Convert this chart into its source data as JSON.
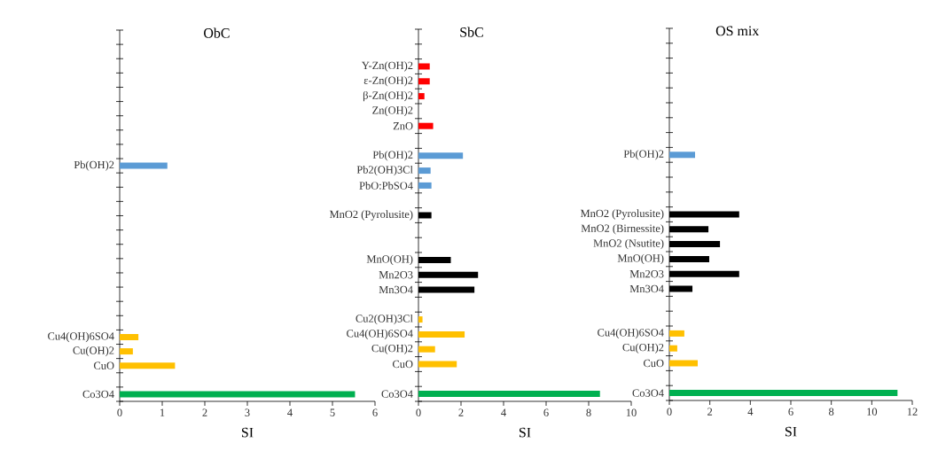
{
  "chart_data": [
    {
      "type": "bar",
      "orientation": "horizontal",
      "title": "ObC",
      "xlabel": "SI",
      "xlim": [
        0,
        6
      ],
      "xticks": [
        0,
        1,
        2,
        3,
        4,
        5,
        6
      ],
      "categories": [
        null,
        null,
        null,
        null,
        null,
        null,
        null,
        null,
        null,
        "Pb(OH)2",
        null,
        null,
        null,
        null,
        null,
        null,
        null,
        null,
        null,
        null,
        null,
        "Cu4(OH)6SO4",
        "Cu(OH)2",
        "CuO",
        null,
        "Co3O4"
      ],
      "values": [
        null,
        null,
        null,
        null,
        null,
        null,
        null,
        null,
        null,
        1.12,
        null,
        null,
        null,
        null,
        null,
        null,
        null,
        null,
        null,
        null,
        null,
        0.44,
        0.31,
        1.3,
        null,
        5.53
      ],
      "colors": [
        null,
        null,
        null,
        null,
        null,
        null,
        null,
        null,
        null,
        "#5b9bd5",
        null,
        null,
        null,
        null,
        null,
        null,
        null,
        null,
        null,
        null,
        null,
        "#ffc000",
        "#ffc000",
        "#ffc000",
        null,
        "#00b050"
      ]
    },
    {
      "type": "bar",
      "orientation": "horizontal",
      "title": "SbC",
      "xlabel": "SI",
      "xlim": [
        0,
        10
      ],
      "xticks": [
        0,
        2,
        4,
        6,
        8,
        10
      ],
      "categories": [
        null,
        null,
        "Υ-Zn(OH)2",
        "ε-Zn(OH)2",
        "β-Zn(OH)2",
        "Zn(OH)2",
        "ZnO",
        null,
        "Pb(OH)2",
        "Pb2(OH)3Cl",
        "PbO:PbSO4",
        null,
        "MnO2 (Pyrolusite)",
        null,
        null,
        "MnO(OH)",
        "Mn2O3",
        "Mn3O4",
        null,
        "Cu2(OH)3Cl",
        "Cu4(OH)6SO4",
        "Cu(OH)2",
        "CuO",
        null,
        "Co3O4"
      ],
      "values": [
        null,
        null,
        0.53,
        0.53,
        0.28,
        null,
        0.69,
        null,
        2.09,
        0.57,
        0.61,
        null,
        0.61,
        null,
        null,
        1.52,
        2.8,
        2.63,
        null,
        0.19,
        2.17,
        0.78,
        1.8,
        null,
        8.53
      ],
      "colors": [
        null,
        null,
        "#ff0000",
        "#ff0000",
        "#ff0000",
        "#ff0000",
        "#ff0000",
        null,
        "#5b9bd5",
        "#5b9bd5",
        "#5b9bd5",
        null,
        "#000000",
        null,
        null,
        "#000000",
        "#000000",
        "#000000",
        null,
        "#ffc000",
        "#ffc000",
        "#ffc000",
        "#ffc000",
        null,
        "#00b050"
      ]
    },
    {
      "type": "bar",
      "orientation": "horizontal",
      "title": "OS mix",
      "xlabel": "SI",
      "xlim": [
        0,
        12
      ],
      "xticks": [
        0,
        2,
        4,
        6,
        8,
        10,
        12
      ],
      "categories": [
        null,
        null,
        null,
        null,
        null,
        null,
        null,
        null,
        "Pb(OH)2",
        null,
        null,
        null,
        "MnO2 (Pyrolusite)",
        "MnO2 (Birnessite)",
        "MnO2 (Nsutite)",
        "MnO(OH)",
        "Mn2O3",
        "Mn3O4",
        null,
        null,
        "Cu4(OH)6SO4",
        "Cu(OH)2",
        "CuO",
        null,
        "Co3O4"
      ],
      "values": [
        null,
        null,
        null,
        null,
        null,
        null,
        null,
        null,
        1.27,
        null,
        null,
        null,
        3.45,
        1.93,
        2.5,
        1.97,
        3.45,
        1.14,
        null,
        null,
        0.74,
        0.39,
        1.4,
        null,
        11.27
      ],
      "colors": [
        null,
        null,
        null,
        null,
        null,
        null,
        null,
        null,
        "#5b9bd5",
        null,
        null,
        null,
        "#000000",
        "#000000",
        "#000000",
        "#000000",
        "#000000",
        "#000000",
        null,
        null,
        "#ffc000",
        "#ffc000",
        "#ffc000",
        null,
        "#00b050"
      ]
    }
  ]
}
